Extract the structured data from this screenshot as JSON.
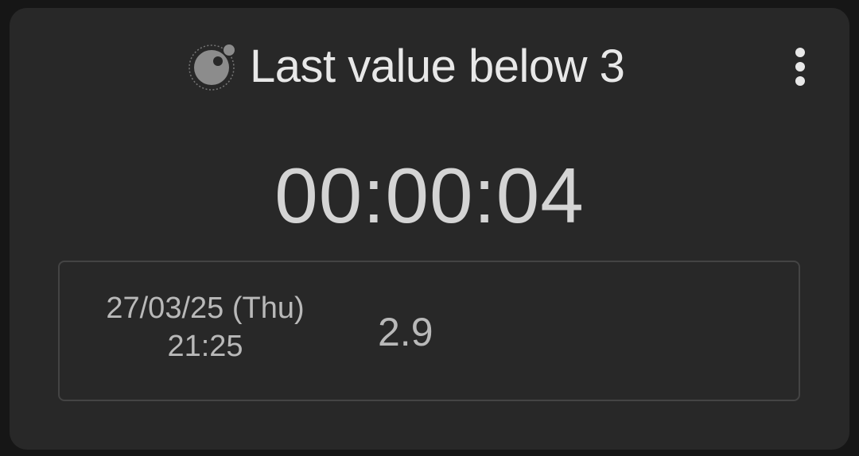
{
  "card": {
    "title": "Last value below 3",
    "logo_icon": "node-logo-icon",
    "menu_icon": "more-vertical-icon",
    "elapsed": "00:00:04"
  },
  "last_entry": {
    "date": "27/03/25 (Thu)",
    "time": "21:25",
    "value": "2.9"
  },
  "colors": {
    "page_background": "#161616",
    "card_background": "#282828",
    "title_text": "#e8e8e8",
    "counter_text": "#d4d4d4",
    "entry_text": "#b9b9b9",
    "entry_border": "#444444"
  }
}
